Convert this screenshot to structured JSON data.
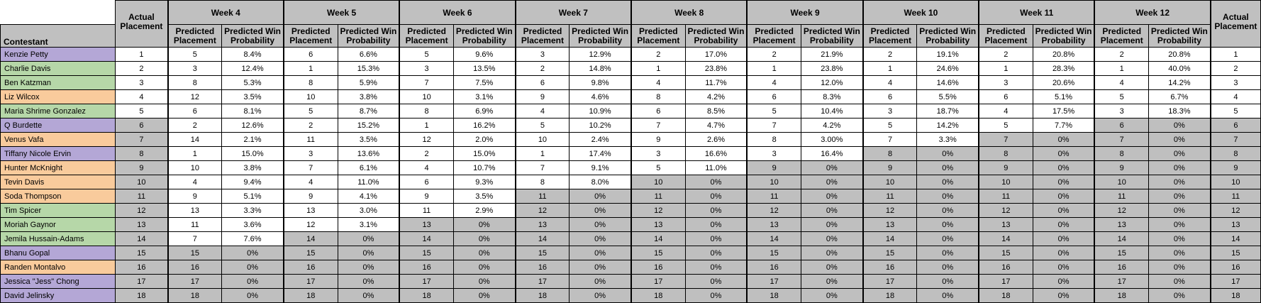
{
  "headers": {
    "contestant": "Contestant",
    "actual_placement": "Actual Placement",
    "predicted_placement": "Predicted Placement",
    "predicted_win_probability": "Predicted Win Probability",
    "weeks": [
      "Week 4",
      "Week 5",
      "Week 6",
      "Week 7",
      "Week 8",
      "Week 9",
      "Week 10",
      "Week 11",
      "Week 12"
    ]
  },
  "colors": {
    "purple": "#b4a7d6",
    "green": "#b6d7a8",
    "orange": "#f9cb9c",
    "eliminated_gray": "#bfbfbf",
    "header_gray": "#c0c0c0"
  },
  "rows": [
    {
      "name": "Kenzie Petty",
      "color": "purple",
      "actual": "1",
      "actual_gray": false,
      "weeks": [
        [
          "5",
          "8.4%",
          false
        ],
        [
          "6",
          "6.6%",
          false
        ],
        [
          "5",
          "9.6%",
          false
        ],
        [
          "3",
          "12.9%",
          false
        ],
        [
          "2",
          "17.0%",
          false
        ],
        [
          "2",
          "21.9%",
          false
        ],
        [
          "2",
          "19.1%",
          false
        ],
        [
          "2",
          "20.8%",
          false
        ],
        [
          "2",
          "20.8%",
          false
        ]
      ]
    },
    {
      "name": "Charlie Davis",
      "color": "green",
      "actual": "2",
      "actual_gray": false,
      "weeks": [
        [
          "3",
          "12.4%",
          false
        ],
        [
          "1",
          "15.3%",
          false
        ],
        [
          "3",
          "13.5%",
          false
        ],
        [
          "2",
          "14.8%",
          false
        ],
        [
          "1",
          "23.8%",
          false
        ],
        [
          "1",
          "23.8%",
          false
        ],
        [
          "1",
          "24.6%",
          false
        ],
        [
          "1",
          "28.3%",
          false
        ],
        [
          "1",
          "40.0%",
          false
        ]
      ]
    },
    {
      "name": "Ben Katzman",
      "color": "green",
      "actual": "3",
      "actual_gray": false,
      "weeks": [
        [
          "8",
          "5.3%",
          false
        ],
        [
          "8",
          "5.9%",
          false
        ],
        [
          "7",
          "7.5%",
          false
        ],
        [
          "6",
          "9.8%",
          false
        ],
        [
          "4",
          "11.7%",
          false
        ],
        [
          "4",
          "12.0%",
          false
        ],
        [
          "4",
          "14.6%",
          false
        ],
        [
          "3",
          "20.6%",
          false
        ],
        [
          "4",
          "14.2%",
          false
        ]
      ]
    },
    {
      "name": "Liz Wilcox",
      "color": "orange",
      "actual": "4",
      "actual_gray": false,
      "weeks": [
        [
          "12",
          "3.5%",
          false
        ],
        [
          "10",
          "3.8%",
          false
        ],
        [
          "10",
          "3.1%",
          false
        ],
        [
          "9",
          "4.6%",
          false
        ],
        [
          "8",
          "4.2%",
          false
        ],
        [
          "6",
          "8.3%",
          false
        ],
        [
          "6",
          "5.5%",
          false
        ],
        [
          "6",
          "5.1%",
          false
        ],
        [
          "5",
          "6.7%",
          false
        ]
      ]
    },
    {
      "name": "Maria Shrime Gonzalez",
      "color": "green",
      "actual": "5",
      "actual_gray": false,
      "weeks": [
        [
          "6",
          "8.1%",
          false
        ],
        [
          "5",
          "8.7%",
          false
        ],
        [
          "8",
          "6.9%",
          false
        ],
        [
          "4",
          "10.9%",
          false
        ],
        [
          "6",
          "8.5%",
          false
        ],
        [
          "5",
          "10.4%",
          false
        ],
        [
          "3",
          "18.7%",
          false
        ],
        [
          "4",
          "17.5%",
          false
        ],
        [
          "3",
          "18.3%",
          false
        ]
      ]
    },
    {
      "name": "Q Burdette",
      "color": "purple",
      "actual": "6",
      "actual_gray": true,
      "weeks": [
        [
          "2",
          "12.6%",
          false
        ],
        [
          "2",
          "15.2%",
          false
        ],
        [
          "1",
          "16.2%",
          false
        ],
        [
          "5",
          "10.2%",
          false
        ],
        [
          "7",
          "4.7%",
          false
        ],
        [
          "7",
          "4.2%",
          false
        ],
        [
          "5",
          "14.2%",
          false
        ],
        [
          "5",
          "7.7%",
          false
        ],
        [
          "6",
          "0%",
          true
        ]
      ]
    },
    {
      "name": "Venus Vafa",
      "color": "orange",
      "actual": "7",
      "actual_gray": true,
      "weeks": [
        [
          "14",
          "2.1%",
          false
        ],
        [
          "11",
          "3.5%",
          false
        ],
        [
          "12",
          "2.0%",
          false
        ],
        [
          "10",
          "2.4%",
          false
        ],
        [
          "9",
          "2.6%",
          false
        ],
        [
          "8",
          "3.00%",
          false
        ],
        [
          "7",
          "3.3%",
          false
        ],
        [
          "7",
          "0%",
          true
        ],
        [
          "7",
          "0%",
          true
        ]
      ]
    },
    {
      "name": "Tiffany Nicole Ervin",
      "color": "purple",
      "actual": "8",
      "actual_gray": true,
      "weeks": [
        [
          "1",
          "15.0%",
          false
        ],
        [
          "3",
          "13.6%",
          false
        ],
        [
          "2",
          "15.0%",
          false
        ],
        [
          "1",
          "17.4%",
          false
        ],
        [
          "3",
          "16.6%",
          false
        ],
        [
          "3",
          "16.4%",
          false
        ],
        [
          "8",
          "0%",
          true
        ],
        [
          "8",
          "0%",
          true
        ],
        [
          "8",
          "0%",
          true
        ]
      ]
    },
    {
      "name": "Hunter McKnight",
      "color": "orange",
      "actual": "9",
      "actual_gray": true,
      "weeks": [
        [
          "10",
          "3.8%",
          false
        ],
        [
          "7",
          "6.1%",
          false
        ],
        [
          "4",
          "10.7%",
          false
        ],
        [
          "7",
          "9.1%",
          false
        ],
        [
          "5",
          "11.0%",
          false
        ],
        [
          "9",
          "0%",
          true
        ],
        [
          "9",
          "0%",
          true
        ],
        [
          "9",
          "0%",
          true
        ],
        [
          "9",
          "0%",
          true
        ]
      ]
    },
    {
      "name": "Tevin Davis",
      "color": "orange",
      "actual": "10",
      "actual_gray": true,
      "weeks": [
        [
          "4",
          "9.4%",
          false
        ],
        [
          "4",
          "11.0%",
          false
        ],
        [
          "6",
          "9.3%",
          false
        ],
        [
          "8",
          "8.0%",
          false
        ],
        [
          "10",
          "0%",
          true
        ],
        [
          "10",
          "0%",
          true
        ],
        [
          "10",
          "0%",
          true
        ],
        [
          "10",
          "0%",
          true
        ],
        [
          "10",
          "0%",
          true
        ]
      ]
    },
    {
      "name": "Soda Thompson",
      "color": "orange",
      "actual": "11",
      "actual_gray": true,
      "weeks": [
        [
          "9",
          "5.1%",
          false
        ],
        [
          "9",
          "4.1%",
          false
        ],
        [
          "9",
          "3.5%",
          false
        ],
        [
          "11",
          "0%",
          true
        ],
        [
          "11",
          "0%",
          true
        ],
        [
          "11",
          "0%",
          true
        ],
        [
          "11",
          "0%",
          true
        ],
        [
          "11",
          "0%",
          true
        ],
        [
          "11",
          "0%",
          true
        ]
      ]
    },
    {
      "name": "Tim Spicer",
      "color": "green",
      "actual": "12",
      "actual_gray": true,
      "weeks": [
        [
          "13",
          "3.3%",
          false
        ],
        [
          "13",
          "3.0%",
          false
        ],
        [
          "11",
          "2.9%",
          false
        ],
        [
          "12",
          "0%",
          true
        ],
        [
          "12",
          "0%",
          true
        ],
        [
          "12",
          "0%",
          true
        ],
        [
          "12",
          "0%",
          true
        ],
        [
          "12",
          "0%",
          true
        ],
        [
          "12",
          "0%",
          true
        ]
      ]
    },
    {
      "name": "Moriah Gaynor",
      "color": "green",
      "actual": "13",
      "actual_gray": true,
      "weeks": [
        [
          "11",
          "3.6%",
          false
        ],
        [
          "12",
          "3.1%",
          false
        ],
        [
          "13",
          "0%",
          true
        ],
        [
          "13",
          "0%",
          true
        ],
        [
          "13",
          "0%",
          true
        ],
        [
          "13",
          "0%",
          true
        ],
        [
          "13",
          "0%",
          true
        ],
        [
          "13",
          "0%",
          true
        ],
        [
          "13",
          "0%",
          true
        ]
      ]
    },
    {
      "name": "Jemila Hussain-Adams",
      "color": "green",
      "actual": "14",
      "actual_gray": true,
      "weeks": [
        [
          "7",
          "7.6%",
          false
        ],
        [
          "14",
          "0%",
          true
        ],
        [
          "14",
          "0%",
          true
        ],
        [
          "14",
          "0%",
          true
        ],
        [
          "14",
          "0%",
          true
        ],
        [
          "14",
          "0%",
          true
        ],
        [
          "14",
          "0%",
          true
        ],
        [
          "14",
          "0%",
          true
        ],
        [
          "14",
          "0%",
          true
        ]
      ]
    },
    {
      "name": "Bhanu Gopal",
      "color": "purple",
      "actual": "15",
      "actual_gray": true,
      "weeks": [
        [
          "15",
          "0%",
          true
        ],
        [
          "15",
          "0%",
          true
        ],
        [
          "15",
          "0%",
          true
        ],
        [
          "15",
          "0%",
          true
        ],
        [
          "15",
          "0%",
          true
        ],
        [
          "15",
          "0%",
          true
        ],
        [
          "15",
          "0%",
          true
        ],
        [
          "15",
          "0%",
          true
        ],
        [
          "15",
          "0%",
          true
        ]
      ]
    },
    {
      "name": "Randen Montalvo",
      "color": "orange",
      "actual": "16",
      "actual_gray": true,
      "weeks": [
        [
          "16",
          "0%",
          true
        ],
        [
          "16",
          "0%",
          true
        ],
        [
          "16",
          "0%",
          true
        ],
        [
          "16",
          "0%",
          true
        ],
        [
          "16",
          "0%",
          true
        ],
        [
          "16",
          "0%",
          true
        ],
        [
          "16",
          "0%",
          true
        ],
        [
          "16",
          "0%",
          true
        ],
        [
          "16",
          "0%",
          true
        ]
      ]
    },
    {
      "name": "Jessica \"Jess\" Chong",
      "color": "purple",
      "actual": "17",
      "actual_gray": true,
      "weeks": [
        [
          "17",
          "0%",
          true
        ],
        [
          "17",
          "0%",
          true
        ],
        [
          "17",
          "0%",
          true
        ],
        [
          "17",
          "0%",
          true
        ],
        [
          "17",
          "0%",
          true
        ],
        [
          "17",
          "0%",
          true
        ],
        [
          "17",
          "0%",
          true
        ],
        [
          "17",
          "0%",
          true
        ],
        [
          "17",
          "0%",
          true
        ]
      ]
    },
    {
      "name": "David Jelinsky",
      "color": "purple",
      "actual": "18",
      "actual_gray": true,
      "weeks": [
        [
          "18",
          "0%",
          true
        ],
        [
          "18",
          "0%",
          true
        ],
        [
          "18",
          "0%",
          true
        ],
        [
          "18",
          "0%",
          true
        ],
        [
          "18",
          "0%",
          true
        ],
        [
          "18",
          "0%",
          true
        ],
        [
          "18",
          "0%",
          true
        ],
        [
          "18",
          "0%",
          true
        ],
        [
          "18",
          "0%",
          true
        ]
      ]
    }
  ]
}
